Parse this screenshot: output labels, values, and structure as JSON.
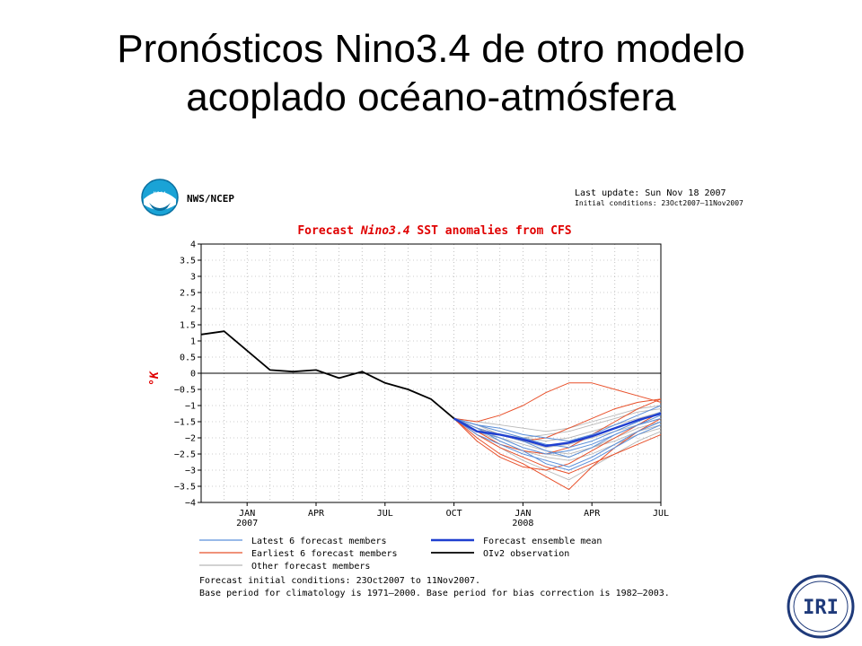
{
  "slide": {
    "title_line1": "Pronósticos Nino3.4  de otro modelo",
    "title_line2": "acoplado océano-atmósfera"
  },
  "figure": {
    "org": "NWS/NCEP",
    "noaa_logo_text": "NOAA",
    "last_update": "Last update: Sun Nov 18 2007",
    "initial_conditions": "Initial conditions: 23Oct2007–11Nov2007",
    "footnote1": "Forecast initial conditions: 23Oct2007 to 11Nov2007.",
    "footnote2": "Base period for climatology is 1971—2000. Base period for bias correction is 1982—2003."
  },
  "iri_logo_text": "IRI",
  "colors": {
    "latest": "#5b8fd9",
    "earliest": "#e8502a",
    "other": "#b8b8b8",
    "mean": "#1f3fd0",
    "obs": "#000000",
    "title_red": "#e00000"
  },
  "chart_data": {
    "type": "line",
    "title_parts": [
      "Forecast ",
      "Nino3.4",
      " SST anomalies from CFS"
    ],
    "ylabel": "°K",
    "ylim": [
      -4,
      4
    ],
    "yticks": [
      4,
      3.5,
      3,
      2.5,
      2,
      1.5,
      1,
      0.5,
      0,
      -0.5,
      -1,
      -1.5,
      -2,
      -2.5,
      -3,
      -3.5,
      -4
    ],
    "ytick_labels": [
      "4",
      "3.5",
      "3",
      "2.5",
      "2",
      "1.5",
      "1",
      "0.5",
      "0",
      "−0.5",
      "−1",
      "−1.5",
      "−2",
      "−2.5",
      "−3",
      "−3.5",
      "−4"
    ],
    "xlim": [
      "2006-11",
      "2008-07"
    ],
    "xticks": [
      {
        "month": "2007-01",
        "label": "JAN",
        "year": "2007"
      },
      {
        "month": "2007-04",
        "label": "APR",
        "year": ""
      },
      {
        "month": "2007-07",
        "label": "JUL",
        "year": ""
      },
      {
        "month": "2007-10",
        "label": "OCT",
        "year": ""
      },
      {
        "month": "2008-01",
        "label": "JAN",
        "year": "2008"
      },
      {
        "month": "2008-04",
        "label": "APR",
        "year": ""
      },
      {
        "month": "2008-07",
        "label": "JUL",
        "year": ""
      }
    ],
    "grid": true,
    "legend": [
      {
        "label": "Latest 6 forecast members",
        "role": "latest"
      },
      {
        "label": "Forecast ensemble mean",
        "role": "mean"
      },
      {
        "label": "Earliest 6 forecast members",
        "role": "earliest"
      },
      {
        "label": "OIv2 observation",
        "role": "obs"
      },
      {
        "label": "Other forecast members",
        "role": "other"
      }
    ],
    "forecast_x": [
      "2007-10",
      "2007-11",
      "2007-12",
      "2008-01",
      "2008-02",
      "2008-03",
      "2008-04",
      "2008-05",
      "2008-06",
      "2008-07"
    ],
    "series": [
      {
        "name": "OIv2 observation",
        "role": "obs",
        "x": [
          "2006-11",
          "2006-12",
          "2007-01",
          "2007-02",
          "2007-03",
          "2007-04",
          "2007-05",
          "2007-06",
          "2007-07",
          "2007-08",
          "2007-09",
          "2007-10"
        ],
        "values": [
          1.2,
          1.3,
          0.7,
          0.1,
          0.05,
          0.1,
          -0.15,
          0.05,
          -0.3,
          -0.5,
          -0.8,
          -1.4
        ]
      },
      {
        "name": "Forecast ensemble mean",
        "role": "mean",
        "values": [
          -1.4,
          -1.8,
          -1.9,
          -2.05,
          -2.25,
          -2.15,
          -1.95,
          -1.7,
          -1.45,
          -1.25
        ]
      },
      {
        "role": "latest",
        "values": [
          -1.4,
          -1.7,
          -1.9,
          -2.1,
          -2.4,
          -2.6,
          -2.3,
          -1.9,
          -1.6,
          -1.3
        ]
      },
      {
        "role": "latest",
        "values": [
          -1.4,
          -1.9,
          -2.2,
          -2.5,
          -2.7,
          -2.9,
          -2.6,
          -2.2,
          -1.8,
          -1.5
        ]
      },
      {
        "role": "latest",
        "values": [
          -1.4,
          -1.6,
          -1.8,
          -2.0,
          -2.2,
          -2.3,
          -2.1,
          -1.8,
          -1.5,
          -1.2
        ]
      },
      {
        "role": "latest",
        "values": [
          -1.4,
          -1.8,
          -2.0,
          -2.3,
          -2.5,
          -2.4,
          -2.2,
          -1.9,
          -1.6,
          -1.4
        ]
      },
      {
        "role": "latest",
        "values": [
          -1.4,
          -1.7,
          -2.1,
          -2.4,
          -2.8,
          -3.0,
          -2.7,
          -2.3,
          -1.9,
          -1.6
        ]
      },
      {
        "role": "latest",
        "values": [
          -1.4,
          -1.6,
          -1.7,
          -1.9,
          -2.0,
          -2.1,
          -1.9,
          -1.6,
          -1.3,
          -1.0
        ]
      },
      {
        "role": "earliest",
        "values": [
          -1.4,
          -1.5,
          -1.3,
          -1.0,
          -0.6,
          -0.3,
          -0.3,
          -0.5,
          -0.7,
          -0.9
        ]
      },
      {
        "role": "earliest",
        "values": [
          -1.4,
          -2.0,
          -2.5,
          -2.8,
          -3.2,
          -3.6,
          -2.9,
          -2.3,
          -1.8,
          -1.4
        ]
      },
      {
        "role": "earliest",
        "values": [
          -1.4,
          -1.8,
          -2.2,
          -2.4,
          -2.5,
          -2.3,
          -1.9,
          -1.5,
          -1.1,
          -0.8
        ]
      },
      {
        "role": "earliest",
        "values": [
          -1.4,
          -2.1,
          -2.6,
          -2.9,
          -3.0,
          -2.8,
          -2.4,
          -2.0,
          -1.6,
          -1.2
        ]
      },
      {
        "role": "earliest",
        "values": [
          -1.4,
          -1.7,
          -1.9,
          -2.1,
          -2.0,
          -1.7,
          -1.4,
          -1.1,
          -0.9,
          -0.8
        ]
      },
      {
        "role": "earliest",
        "values": [
          -1.4,
          -1.9,
          -2.3,
          -2.6,
          -2.9,
          -3.1,
          -2.8,
          -2.5,
          -2.2,
          -1.9
        ]
      },
      {
        "role": "other",
        "values": [
          -1.4,
          -1.6,
          -1.8,
          -2.0,
          -2.1,
          -2.0,
          -1.8,
          -1.6,
          -1.4,
          -1.2
        ]
      },
      {
        "role": "other",
        "values": [
          -1.4,
          -1.7,
          -2.0,
          -2.2,
          -2.4,
          -2.5,
          -2.3,
          -2.0,
          -1.7,
          -1.5
        ]
      },
      {
        "role": "other",
        "values": [
          -1.4,
          -1.5,
          -1.6,
          -1.7,
          -1.8,
          -1.7,
          -1.5,
          -1.3,
          -1.1,
          -1.0
        ]
      },
      {
        "role": "other",
        "values": [
          -1.4,
          -1.8,
          -2.1,
          -2.4,
          -2.6,
          -2.7,
          -2.5,
          -2.2,
          -1.9,
          -1.7
        ]
      },
      {
        "role": "other",
        "values": [
          -1.4,
          -1.6,
          -1.9,
          -2.1,
          -2.3,
          -2.2,
          -2.0,
          -1.8,
          -1.6,
          -1.4
        ]
      },
      {
        "role": "other",
        "values": [
          -1.4,
          -1.9,
          -2.3,
          -2.7,
          -3.0,
          -3.3,
          -2.9,
          -2.5,
          -2.1,
          -1.8
        ]
      },
      {
        "role": "other",
        "values": [
          -1.4,
          -1.7,
          -1.9,
          -2.0,
          -1.9,
          -1.8,
          -1.6,
          -1.4,
          -1.2,
          -1.1
        ]
      },
      {
        "role": "other",
        "values": [
          -1.4,
          -1.8,
          -2.0,
          -2.3,
          -2.5,
          -2.6,
          -2.3,
          -2.1,
          -1.8,
          -1.6
        ]
      }
    ]
  }
}
